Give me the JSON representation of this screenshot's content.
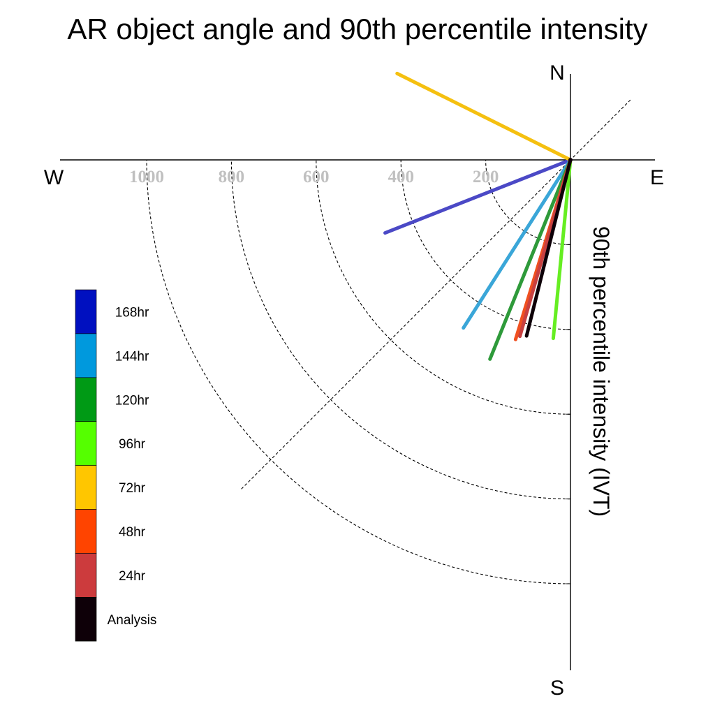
{
  "chart_data": {
    "type": "polar-line",
    "title": "AR object angle and 90th percentile intensity",
    "ylabel": "90th percentile intensity (IVT)",
    "compass": {
      "north": "N",
      "south": "S",
      "east": "E",
      "west": "W"
    },
    "radial_ticks": [
      200,
      400,
      600,
      800,
      1000
    ],
    "radial_tick_labels": [
      "200",
      "400",
      "600",
      "800",
      "1000"
    ],
    "rlim": [
      0,
      1100
    ],
    "grid": true,
    "legend_position": "left",
    "series": [
      {
        "name": "168hr",
        "color": "#0010C0",
        "line_color": "#4B49C6",
        "angle_deg": 248.5,
        "intensity": 470
      },
      {
        "name": "144hr",
        "color": "#0099DD",
        "line_color": "#3AA6D8",
        "angle_deg": 212.5,
        "intensity": 470
      },
      {
        "name": "120hr",
        "color": "#009A15",
        "line_color": "#2E9A3A",
        "angle_deg": 202.0,
        "intensity": 507
      },
      {
        "name": "96hr",
        "color": "#55FF00",
        "line_color": "#66EE22",
        "angle_deg": 185.5,
        "intensity": 423
      },
      {
        "name": "72hr",
        "color": "#FFC600",
        "line_color": "#F5C010",
        "angle_deg": 296.5,
        "intensity": 457
      },
      {
        "name": "48hr",
        "color": "#FF4400",
        "line_color": "#F05020",
        "angle_deg": 197.0,
        "intensity": 443
      },
      {
        "name": "24hr",
        "color": "#CC3B3D",
        "line_color": "#C84040",
        "angle_deg": 196.0,
        "intensity": 433
      },
      {
        "name": "Analysis",
        "color": "#0E0008",
        "line_color": "#0E0008",
        "angle_deg": 194.0,
        "intensity": 428
      }
    ],
    "legend_order": [
      "168hr",
      "144hr",
      "120hr",
      "96hr",
      "72hr",
      "48hr",
      "24hr",
      "Analysis"
    ]
  }
}
